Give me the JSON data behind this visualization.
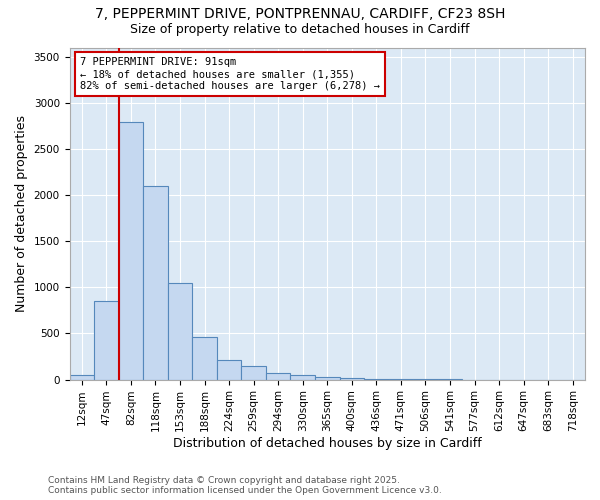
{
  "title_line1": "7, PEPPERMINT DRIVE, PONTPRENNAU, CARDIFF, CF23 8SH",
  "title_line2": "Size of property relative to detached houses in Cardiff",
  "xlabel": "Distribution of detached houses by size in Cardiff",
  "ylabel": "Number of detached properties",
  "bin_labels": [
    "12sqm",
    "47sqm",
    "82sqm",
    "118sqm",
    "153sqm",
    "188sqm",
    "224sqm",
    "259sqm",
    "294sqm",
    "330sqm",
    "365sqm",
    "400sqm",
    "436sqm",
    "471sqm",
    "506sqm",
    "541sqm",
    "577sqm",
    "612sqm",
    "647sqm",
    "683sqm",
    "718sqm"
  ],
  "bar_values": [
    50,
    850,
    2790,
    2100,
    1050,
    460,
    210,
    150,
    75,
    55,
    30,
    20,
    10,
    5,
    3,
    2,
    1,
    1,
    0,
    0,
    0
  ],
  "bar_color": "#c5d8f0",
  "bar_edge_color": "#5588bb",
  "vline_color": "#cc0000",
  "annotation_text": "7 PEPPERMINT DRIVE: 91sqm\n← 18% of detached houses are smaller (1,355)\n82% of semi-detached houses are larger (6,278) →",
  "annotation_box_color": "#ffffff",
  "annotation_border_color": "#cc0000",
  "ylim_max": 3600,
  "plot_bg_color": "#dce9f5",
  "grid_color": "#ffffff",
  "fig_bg_color": "#ffffff",
  "footer_text": "Contains HM Land Registry data © Crown copyright and database right 2025.\nContains public sector information licensed under the Open Government Licence v3.0.",
  "title_fontsize": 10,
  "subtitle_fontsize": 9,
  "axis_label_fontsize": 9,
  "tick_fontsize": 7.5,
  "annotation_fontsize": 7.5,
  "footer_fontsize": 6.5
}
